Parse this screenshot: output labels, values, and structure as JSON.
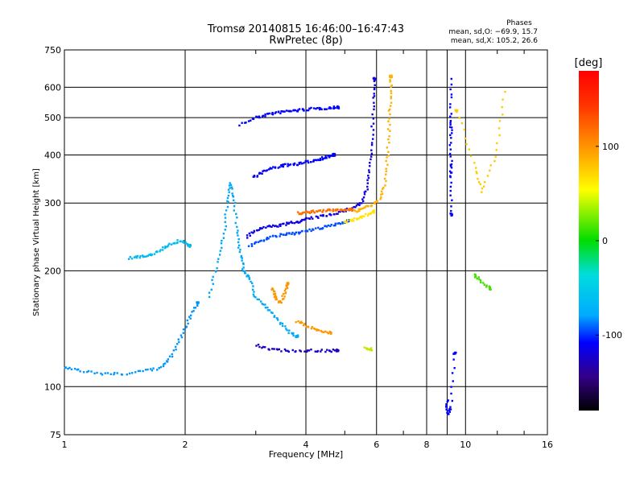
{
  "chart_data": {
    "type": "scatter",
    "title": "Tromsø 20140815 16:46:00–16:47:43",
    "subtitle": "RwPretec (8p)",
    "phase_info": {
      "heading": "Phases",
      "line1": "mean, sd,O: −69.9, 15.7",
      "line2": "mean, sd,X: 105.2, 26.6"
    },
    "xlabel": "Frequency [MHz]",
    "ylabel": "Stationary phase Virtual Height [km]",
    "x_scale": "log",
    "y_scale": "log",
    "xlim": [
      1,
      16
    ],
    "ylim": [
      75,
      750
    ],
    "x_ticks": [
      1,
      2,
      4,
      6,
      8,
      10,
      16
    ],
    "x_tick_labels": [
      "1",
      "2",
      "4",
      "6",
      "8",
      "10",
      "16"
    ],
    "y_ticks": [
      75,
      100,
      200,
      300,
      400,
      500,
      600,
      750
    ],
    "y_tick_labels": [
      "75",
      "100",
      "200",
      "300",
      "400",
      "500",
      "600",
      "750"
    ],
    "grid": true,
    "colorbar": {
      "label": "[deg]",
      "range": [
        -180,
        180
      ],
      "tick_values": [
        100,
        0,
        -100
      ],
      "tick_labels": [
        "100",
        "0",
        "-100"
      ]
    },
    "traces": [
      {
        "phase": -100,
        "points": [
          [
            2.75,
            480
          ],
          [
            3.0,
            500
          ],
          [
            3.2,
            510
          ],
          [
            3.4,
            515
          ],
          [
            3.6,
            520
          ],
          [
            3.8,
            522
          ],
          [
            4.0,
            525
          ],
          [
            4.3,
            528
          ],
          [
            4.6,
            530
          ],
          [
            4.8,
            532
          ]
        ]
      },
      {
        "phase": -100,
        "points": [
          [
            2.95,
            350
          ],
          [
            3.1,
            360
          ],
          [
            3.3,
            370
          ],
          [
            3.5,
            375
          ],
          [
            3.7,
            378
          ],
          [
            3.9,
            380
          ],
          [
            4.1,
            385
          ],
          [
            4.3,
            390
          ],
          [
            4.5,
            395
          ],
          [
            4.7,
            400
          ]
        ]
      },
      {
        "phase": -110,
        "points": [
          [
            2.85,
            245
          ],
          [
            3.0,
            255
          ],
          [
            3.2,
            260
          ],
          [
            3.4,
            262
          ],
          [
            3.6,
            265
          ],
          [
            3.8,
            268
          ],
          [
            4.0,
            272
          ],
          [
            4.3,
            276
          ],
          [
            4.6,
            280
          ],
          [
            4.9,
            285
          ],
          [
            5.2,
            290
          ],
          [
            5.5,
            300
          ],
          [
            5.7,
            330
          ],
          [
            5.8,
            380
          ],
          [
            5.85,
            450
          ],
          [
            5.9,
            550
          ],
          [
            5.92,
            630
          ]
        ]
      },
      {
        "phase": -80,
        "points": [
          [
            2.9,
            232
          ],
          [
            3.1,
            240
          ],
          [
            3.3,
            245
          ],
          [
            3.5,
            248
          ],
          [
            3.7,
            250
          ],
          [
            3.9,
            252
          ],
          [
            4.2,
            256
          ],
          [
            4.5,
            260
          ],
          [
            4.8,
            265
          ],
          [
            5.1,
            270
          ]
        ]
      },
      {
        "phase": 150,
        "points": [
          [
            3.8,
            282
          ],
          [
            4.0,
            283
          ],
          [
            4.2,
            285
          ],
          [
            4.4,
            286
          ],
          [
            4.6,
            287
          ],
          [
            4.8,
            288
          ],
          [
            5.0,
            288
          ],
          [
            5.2,
            288
          ]
        ]
      },
      {
        "phase": 130,
        "points": [
          [
            5.3,
            285
          ],
          [
            5.5,
            290
          ],
          [
            5.8,
            295
          ],
          [
            6.1,
            305
          ],
          [
            6.3,
            340
          ],
          [
            6.4,
            400
          ],
          [
            6.45,
            480
          ],
          [
            6.5,
            560
          ],
          [
            6.52,
            640
          ]
        ]
      },
      {
        "phase": 110,
        "points": [
          [
            5.0,
            268
          ],
          [
            5.3,
            272
          ],
          [
            5.6,
            278
          ],
          [
            5.9,
            285
          ]
        ]
      },
      {
        "phase": -50,
        "points": [
          [
            2.3,
            170
          ],
          [
            2.4,
            210
          ],
          [
            2.5,
            250
          ],
          [
            2.55,
            300
          ],
          [
            2.6,
            340
          ],
          [
            2.65,
            300
          ],
          [
            2.7,
            250
          ],
          [
            2.75,
            220
          ],
          [
            2.8,
            200
          ],
          [
            2.9,
            190
          ],
          [
            3.0,
            170
          ],
          [
            3.2,
            160
          ],
          [
            3.4,
            150
          ],
          [
            3.6,
            140
          ],
          [
            3.8,
            135
          ]
        ]
      },
      {
        "phase": -120,
        "points": [
          [
            3.0,
            128
          ],
          [
            3.3,
            125
          ],
          [
            3.6,
            124
          ],
          [
            4.0,
            124
          ],
          [
            4.4,
            124
          ],
          [
            4.8,
            124
          ]
        ]
      },
      {
        "phase": -60,
        "points": [
          [
            1.0,
            112
          ],
          [
            1.1,
            110
          ],
          [
            1.25,
            108
          ],
          [
            1.4,
            108
          ],
          [
            1.6,
            110
          ],
          [
            1.75,
            112
          ],
          [
            1.85,
            120
          ],
          [
            1.95,
            135
          ],
          [
            2.05,
            150
          ],
          [
            2.15,
            165
          ]
        ]
      },
      {
        "phase": -40,
        "points": [
          [
            1.45,
            216
          ],
          [
            1.55,
            218
          ],
          [
            1.65,
            220
          ],
          [
            1.75,
            228
          ],
          [
            1.85,
            235
          ],
          [
            1.95,
            240
          ],
          [
            2.05,
            232
          ]
        ]
      },
      {
        "phase": 140,
        "points": [
          [
            3.3,
            180
          ],
          [
            3.35,
            172
          ],
          [
            3.45,
            165
          ],
          [
            3.55,
            175
          ],
          [
            3.6,
            185
          ]
        ]
      },
      {
        "phase": 140,
        "points": [
          [
            3.8,
            148
          ],
          [
            4.0,
            144
          ],
          [
            4.3,
            140
          ],
          [
            4.6,
            138
          ]
        ]
      },
      {
        "phase": 60,
        "points": [
          [
            5.6,
            126
          ],
          [
            5.8,
            125
          ]
        ]
      },
      {
        "phase": -100,
        "points": [
          [
            9.2,
            630
          ],
          [
            9.2,
            500
          ],
          [
            9.2,
            450
          ],
          [
            9.2,
            380
          ],
          [
            9.2,
            350
          ],
          [
            9.2,
            280
          ]
        ]
      },
      {
        "phase": 120,
        "points": [
          [
            12.5,
            580
          ],
          [
            12.0,
            410
          ],
          [
            11.0,
            320
          ],
          [
            10.5,
            380
          ],
          [
            9.5,
            520
          ]
        ]
      },
      {
        "phase": 20,
        "points": [
          [
            10.5,
            195
          ],
          [
            10.8,
            190
          ],
          [
            11.5,
            180
          ]
        ]
      },
      {
        "phase": -100,
        "points": [
          [
            9.0,
            92
          ],
          [
            9.0,
            85
          ],
          [
            9.2,
            88
          ],
          [
            9.4,
            122
          ]
        ]
      }
    ]
  }
}
